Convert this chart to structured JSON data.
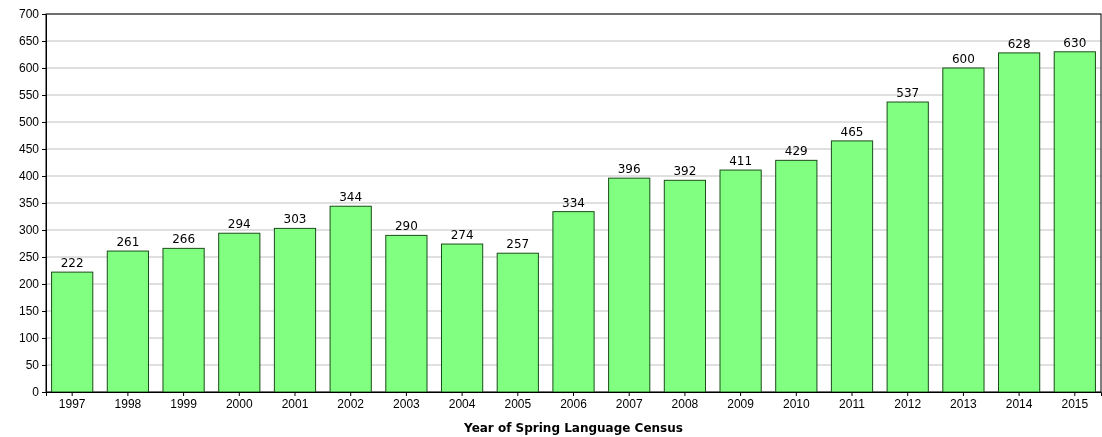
{
  "chart_data": {
    "type": "bar",
    "xlabel": "Year of Spring Language Census",
    "categories": [
      "1997",
      "1998",
      "1999",
      "2000",
      "2001",
      "2002",
      "2003",
      "2004",
      "2005",
      "2006",
      "2007",
      "2008",
      "2009",
      "2010",
      "2011",
      "2012",
      "2013",
      "2014",
      "2015"
    ],
    "values": [
      222,
      261,
      266,
      294,
      303,
      344,
      290,
      274,
      257,
      334,
      396,
      392,
      411,
      429,
      465,
      537,
      600,
      628,
      630
    ],
    "color": "#80ff80",
    "ylim": [
      0,
      700
    ],
    "yticks": [
      0,
      50,
      100,
      150,
      200,
      250,
      300,
      350,
      400,
      450,
      500,
      550,
      600,
      650,
      700
    ],
    "grid": "y",
    "data_labels": true
  }
}
